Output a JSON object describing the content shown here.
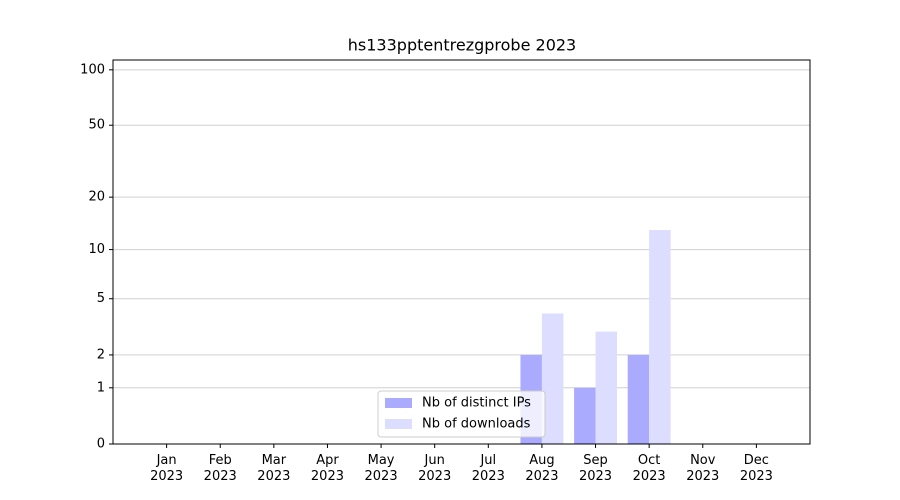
{
  "chart_data": {
    "type": "bar",
    "title": "hs133pptentrezgprobe 2023",
    "categories": [
      "Jan 2023",
      "Feb 2023",
      "Mar 2023",
      "Apr 2023",
      "May 2023",
      "Jun 2023",
      "Jul 2023",
      "Aug 2023",
      "Sep 2023",
      "Oct 2023",
      "Nov 2023",
      "Dec 2023"
    ],
    "series": [
      {
        "name": "Nb of distinct IPs",
        "color": "#aaaaff",
        "values": [
          0,
          0,
          0,
          0,
          0,
          0,
          0,
          2,
          1,
          2,
          0,
          0
        ]
      },
      {
        "name": "Nb of downloads",
        "color": "#ddddff",
        "values": [
          0,
          0,
          0,
          0,
          0,
          0,
          0,
          4,
          3,
          13,
          0,
          0
        ]
      }
    ],
    "yscale": "log1p",
    "ylim": [
      0,
      113
    ],
    "yticks": [
      0,
      1,
      2,
      5,
      10,
      20,
      50,
      100
    ],
    "grid": true,
    "legend": "lower center"
  }
}
